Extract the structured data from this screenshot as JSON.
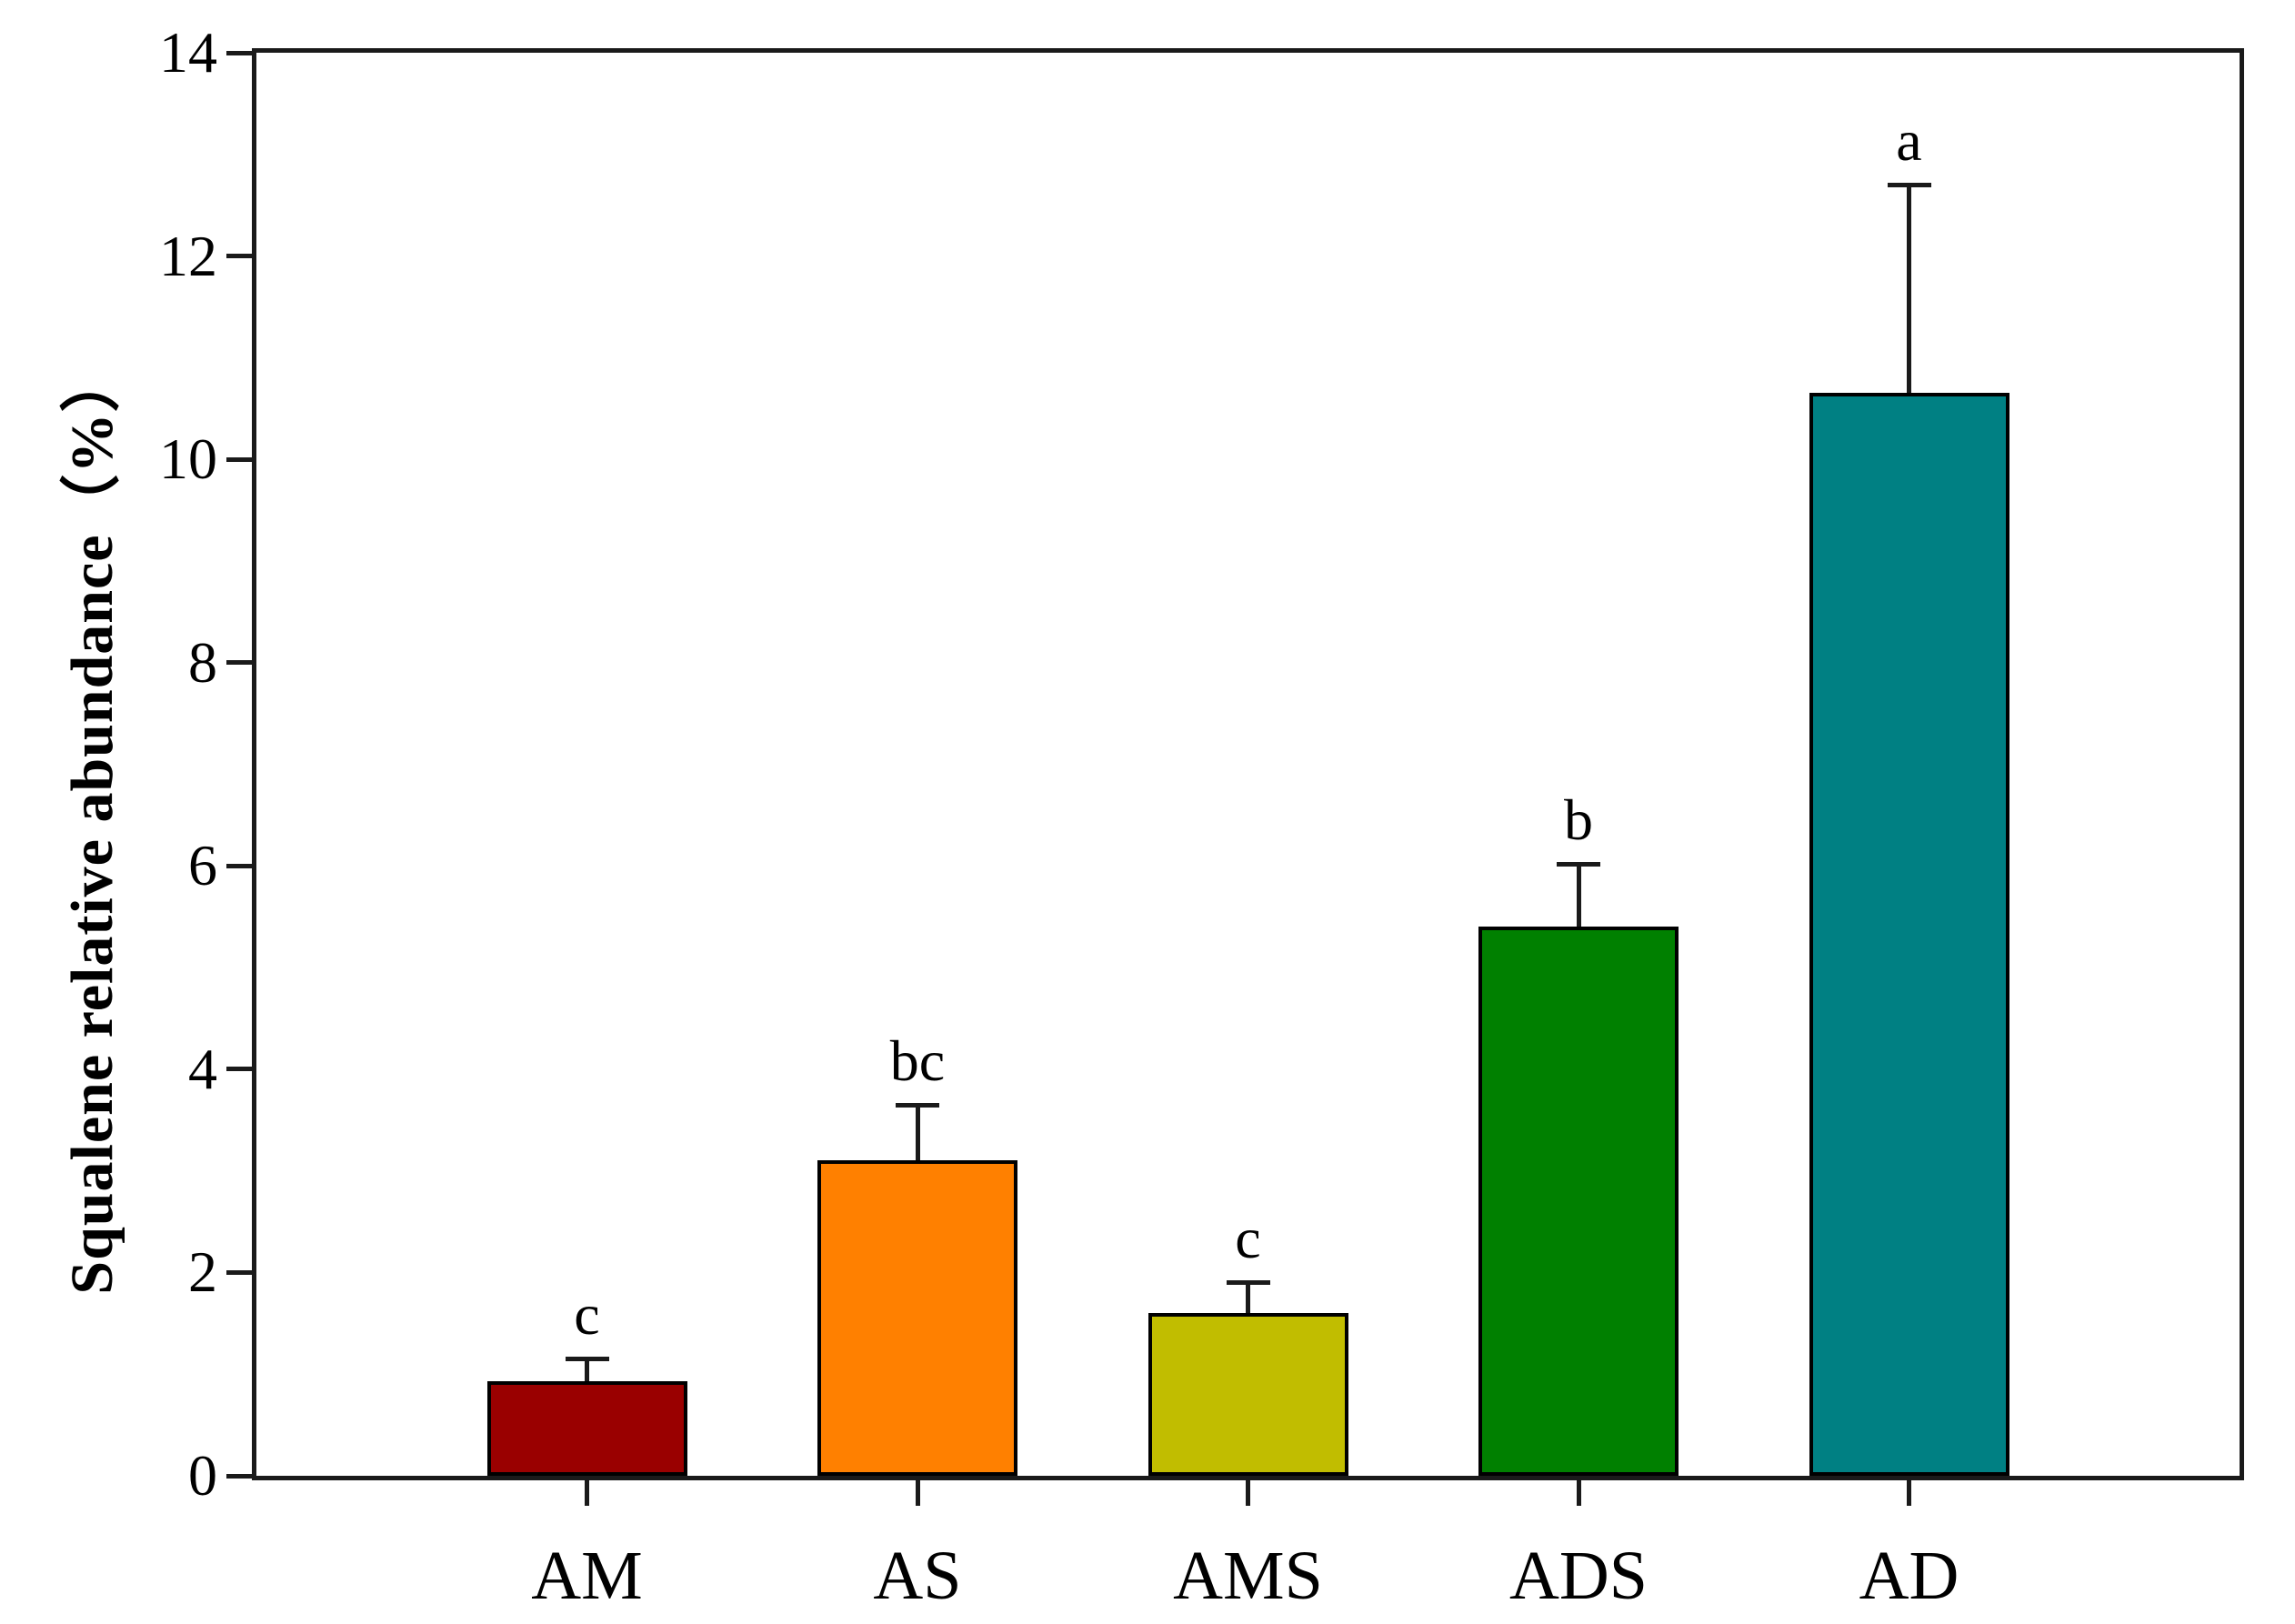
{
  "chart_data": {
    "type": "bar",
    "title": "",
    "ylabel": "Squalene relative abundance（%）",
    "xlabel": "",
    "ylim": [
      0,
      14
    ],
    "yticks": [
      0,
      2,
      4,
      6,
      8,
      10,
      12,
      14
    ],
    "grid": false,
    "legend_position": "none",
    "categories": [
      "AM",
      "AS",
      "AMS",
      "ADS",
      "AD"
    ],
    "series": [
      {
        "name": "Squalene relative abundance (%)",
        "values": [
          0.93,
          3.1,
          1.6,
          5.4,
          10.65
        ],
        "error_plus": [
          0.22,
          0.55,
          0.31,
          0.62,
          2.05
        ]
      }
    ],
    "sig_letters": [
      "c",
      "bc",
      "c",
      "b",
      "a"
    ],
    "bar_colors": [
      "#9A0000",
      "#FF8000",
      "#C1BD00",
      "#008000",
      "#008083"
    ],
    "bar_edge_color": "#000000",
    "axis_color": "#1a1a1a",
    "background_color": "#FFFFFF"
  }
}
